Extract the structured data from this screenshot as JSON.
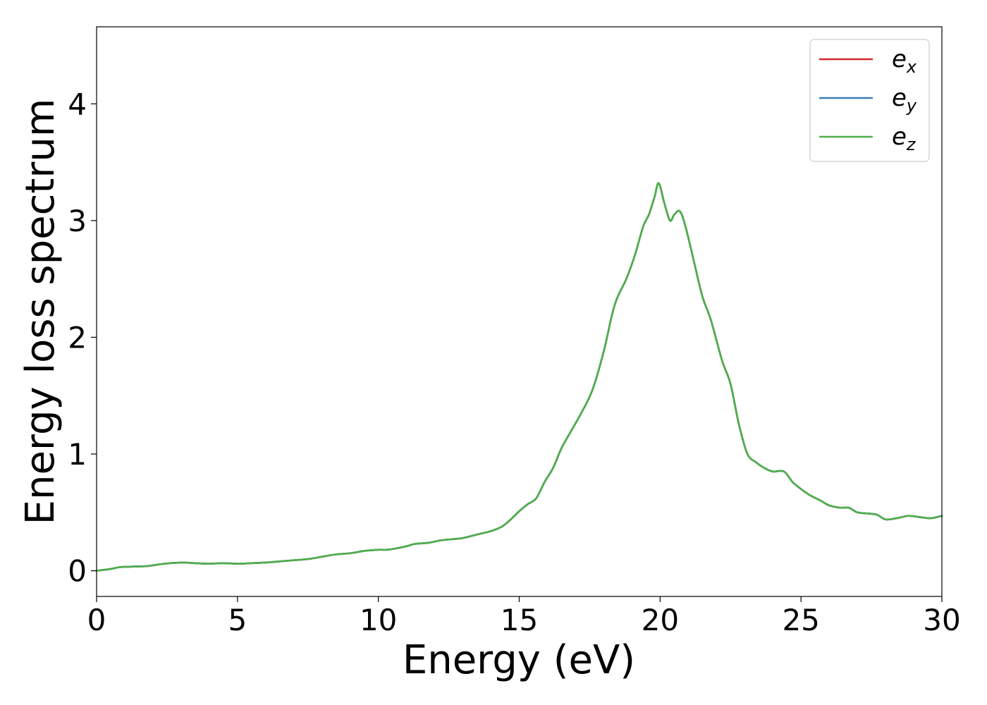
{
  "chart_data": {
    "type": "line",
    "xlabel": "Energy (eV)",
    "ylabel": "Energy loss spectrum",
    "xlim": [
      0,
      30
    ],
    "ylim": [
      -0.22,
      4.66
    ],
    "xticks": [
      0,
      5,
      10,
      15,
      20,
      25,
      30
    ],
    "yticks": [
      0,
      1,
      2,
      3,
      4
    ],
    "grid": false,
    "legend_position": "top-right",
    "series": [
      {
        "name": "e_x",
        "legend_base": "e",
        "legend_sub": "x",
        "color": "#d62728",
        "x": [
          0,
          0.5,
          0.8,
          1.2,
          1.8,
          2.4,
          3.0,
          3.5,
          4.0,
          4.5,
          5.0,
          5.5,
          6.0,
          6.5,
          7.0,
          7.5,
          8.0,
          8.5,
          9.0,
          9.5,
          10.0,
          10.3,
          10.6,
          11.0,
          11.3,
          11.8,
          12.2,
          12.6,
          13.0,
          13.5,
          14.0,
          14.4,
          14.7,
          15.0,
          15.3,
          15.6,
          15.9,
          16.2,
          16.5,
          16.8,
          17.2,
          17.6,
          18.0,
          18.3,
          18.5,
          18.8,
          19.1,
          19.4,
          19.6,
          19.8,
          19.95,
          20.15,
          20.35,
          20.5,
          20.7,
          20.9,
          21.2,
          21.5,
          21.8,
          22.2,
          22.5,
          22.8,
          23.1,
          23.4,
          23.7,
          24.0,
          24.4,
          24.7,
          25.0,
          25.3,
          25.7,
          26.0,
          26.4,
          26.7,
          27.0,
          27.4,
          27.7,
          28.0,
          28.4,
          28.8,
          29.2,
          29.6,
          30.0
        ],
        "y": [
          0.0,
          0.015,
          0.03,
          0.035,
          0.04,
          0.06,
          0.07,
          0.065,
          0.06,
          0.065,
          0.06,
          0.065,
          0.07,
          0.08,
          0.09,
          0.1,
          0.12,
          0.14,
          0.15,
          0.17,
          0.18,
          0.18,
          0.19,
          0.21,
          0.23,
          0.24,
          0.26,
          0.27,
          0.28,
          0.31,
          0.34,
          0.38,
          0.44,
          0.51,
          0.57,
          0.62,
          0.76,
          0.88,
          1.05,
          1.18,
          1.35,
          1.55,
          1.88,
          2.2,
          2.35,
          2.5,
          2.7,
          2.95,
          3.05,
          3.2,
          3.32,
          3.15,
          3.0,
          3.05,
          3.08,
          2.95,
          2.65,
          2.35,
          2.15,
          1.8,
          1.6,
          1.25,
          1.0,
          0.93,
          0.88,
          0.85,
          0.85,
          0.76,
          0.7,
          0.65,
          0.6,
          0.56,
          0.54,
          0.54,
          0.5,
          0.49,
          0.48,
          0.44,
          0.45,
          0.47,
          0.46,
          0.45,
          0.47
        ]
      },
      {
        "name": "e_y",
        "legend_base": "e",
        "legend_sub": "y",
        "color": "#377eb8",
        "x": [
          0,
          0.5,
          0.8,
          1.2,
          1.8,
          2.4,
          3.0,
          3.5,
          4.0,
          4.5,
          5.0,
          5.5,
          6.0,
          6.5,
          7.0,
          7.5,
          8.0,
          8.5,
          9.0,
          9.5,
          10.0,
          10.3,
          10.6,
          11.0,
          11.3,
          11.8,
          12.2,
          12.6,
          13.0,
          13.5,
          14.0,
          14.4,
          14.7,
          15.0,
          15.3,
          15.6,
          15.9,
          16.2,
          16.5,
          16.8,
          17.2,
          17.6,
          18.0,
          18.3,
          18.5,
          18.8,
          19.1,
          19.4,
          19.6,
          19.8,
          19.95,
          20.15,
          20.35,
          20.5,
          20.7,
          20.9,
          21.2,
          21.5,
          21.8,
          22.2,
          22.5,
          22.8,
          23.1,
          23.4,
          23.7,
          24.0,
          24.4,
          24.7,
          25.0,
          25.3,
          25.7,
          26.0,
          26.4,
          26.7,
          27.0,
          27.4,
          27.7,
          28.0,
          28.4,
          28.8,
          29.2,
          29.6,
          30.0
        ],
        "y": [
          0.0,
          0.015,
          0.03,
          0.035,
          0.04,
          0.06,
          0.07,
          0.065,
          0.06,
          0.065,
          0.06,
          0.065,
          0.07,
          0.08,
          0.09,
          0.1,
          0.12,
          0.14,
          0.15,
          0.17,
          0.18,
          0.18,
          0.19,
          0.21,
          0.23,
          0.24,
          0.26,
          0.27,
          0.28,
          0.31,
          0.34,
          0.38,
          0.44,
          0.51,
          0.57,
          0.62,
          0.76,
          0.88,
          1.05,
          1.18,
          1.35,
          1.55,
          1.88,
          2.2,
          2.35,
          2.5,
          2.7,
          2.95,
          3.05,
          3.2,
          3.32,
          3.15,
          3.0,
          3.05,
          3.08,
          2.95,
          2.65,
          2.35,
          2.15,
          1.8,
          1.6,
          1.25,
          1.0,
          0.93,
          0.88,
          0.85,
          0.85,
          0.76,
          0.7,
          0.65,
          0.6,
          0.56,
          0.54,
          0.54,
          0.5,
          0.49,
          0.48,
          0.44,
          0.45,
          0.47,
          0.46,
          0.45,
          0.47
        ]
      },
      {
        "name": "e_z",
        "legend_base": "e",
        "legend_sub": "z",
        "color": "#4daf4a",
        "x": [
          0,
          0.5,
          0.8,
          1.2,
          1.8,
          2.4,
          3.0,
          3.5,
          4.0,
          4.5,
          5.0,
          5.5,
          6.0,
          6.5,
          7.0,
          7.5,
          8.0,
          8.5,
          9.0,
          9.5,
          10.0,
          10.3,
          10.6,
          11.0,
          11.3,
          11.8,
          12.2,
          12.6,
          13.0,
          13.5,
          14.0,
          14.4,
          14.7,
          15.0,
          15.3,
          15.6,
          15.9,
          16.2,
          16.5,
          16.8,
          17.2,
          17.6,
          18.0,
          18.3,
          18.5,
          18.8,
          19.1,
          19.4,
          19.6,
          19.8,
          19.95,
          20.15,
          20.35,
          20.5,
          20.7,
          20.9,
          21.2,
          21.5,
          21.8,
          22.2,
          22.5,
          22.8,
          23.1,
          23.4,
          23.7,
          24.0,
          24.4,
          24.7,
          25.0,
          25.3,
          25.7,
          26.0,
          26.4,
          26.7,
          27.0,
          27.4,
          27.7,
          28.0,
          28.4,
          28.8,
          29.2,
          29.6,
          30.0
        ],
        "y": [
          0.0,
          0.015,
          0.03,
          0.035,
          0.04,
          0.06,
          0.07,
          0.065,
          0.06,
          0.065,
          0.06,
          0.065,
          0.07,
          0.08,
          0.09,
          0.1,
          0.12,
          0.14,
          0.15,
          0.17,
          0.18,
          0.18,
          0.19,
          0.21,
          0.23,
          0.24,
          0.26,
          0.27,
          0.28,
          0.31,
          0.34,
          0.38,
          0.44,
          0.51,
          0.57,
          0.62,
          0.76,
          0.88,
          1.05,
          1.18,
          1.35,
          1.55,
          1.88,
          2.2,
          2.35,
          2.5,
          2.7,
          2.95,
          3.05,
          3.2,
          3.32,
          3.15,
          3.0,
          3.05,
          3.08,
          2.95,
          2.65,
          2.35,
          2.15,
          1.8,
          1.6,
          1.25,
          1.0,
          0.93,
          0.88,
          0.85,
          0.85,
          0.76,
          0.7,
          0.65,
          0.6,
          0.56,
          0.54,
          0.54,
          0.5,
          0.49,
          0.48,
          0.44,
          0.45,
          0.47,
          0.46,
          0.45,
          0.47
        ]
      }
    ]
  }
}
